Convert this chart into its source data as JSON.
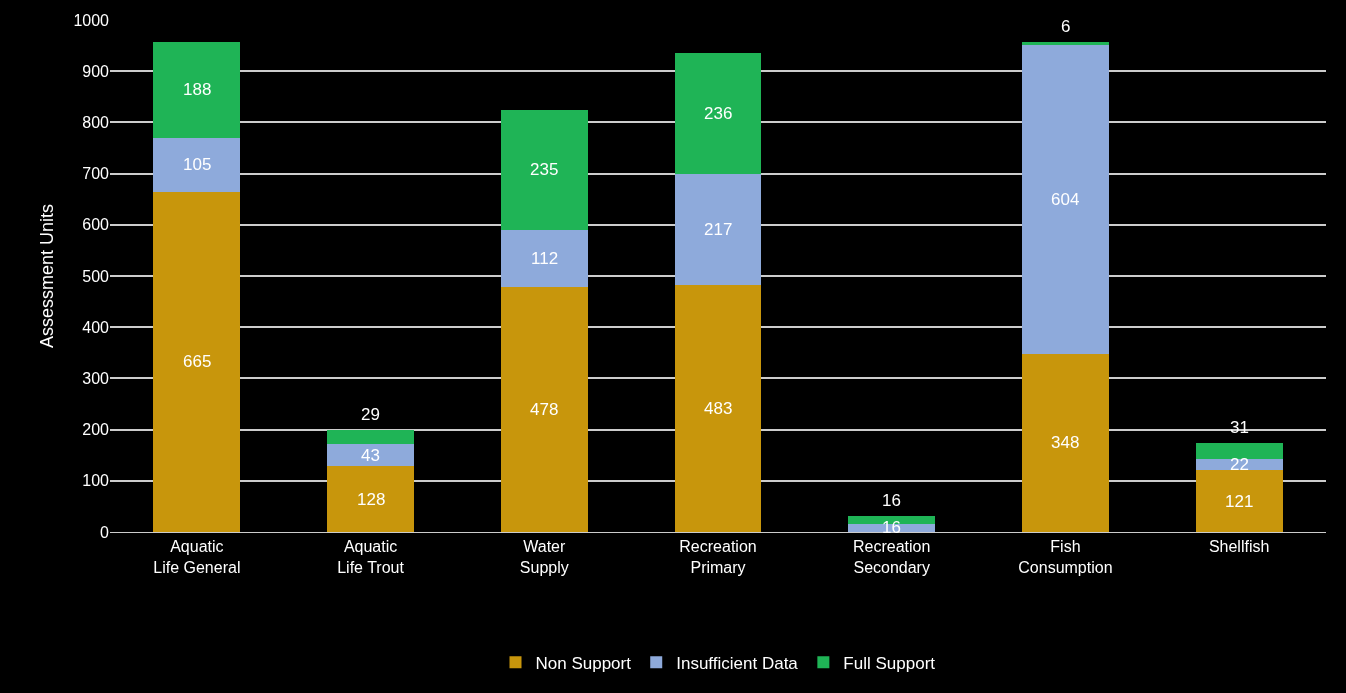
{
  "chart_data": {
    "type": "bar",
    "stacked": true,
    "ylabel": "Assessment Units",
    "categories": [
      "Aquatic Life General",
      "Aquatic Life Trout",
      "Water Supply",
      "Recreation Primary",
      "Recreation Secondary",
      "Fish Consumption",
      "Shellfish"
    ],
    "series": [
      {
        "name": "Non Support",
        "color": "#c8960c",
        "values": [
          665,
          128,
          478,
          483,
          0,
          348,
          121
        ],
        "value_labels": [
          "665",
          "128",
          "478",
          "483",
          null,
          "348",
          "121"
        ]
      },
      {
        "name": "Insufficient Data",
        "color": "#8eaadb",
        "values": [
          105,
          43,
          112,
          217,
          16,
          604,
          22
        ],
        "value_labels": [
          "105",
          "43",
          "112",
          "217",
          "16",
          "604",
          "22"
        ]
      },
      {
        "name": "Full Support",
        "color": "#1fb456",
        "values": [
          188,
          29,
          235,
          236,
          16,
          6,
          31
        ],
        "value_labels": [
          "188",
          "29",
          "235",
          "236",
          "16",
          "6",
          "31"
        ]
      }
    ],
    "ylim": [
      0,
      1000
    ],
    "yticks": [
      0,
      100,
      200,
      300,
      400,
      500,
      600,
      700,
      800,
      900,
      1000
    ],
    "grid": "y",
    "legend": "bottom"
  }
}
